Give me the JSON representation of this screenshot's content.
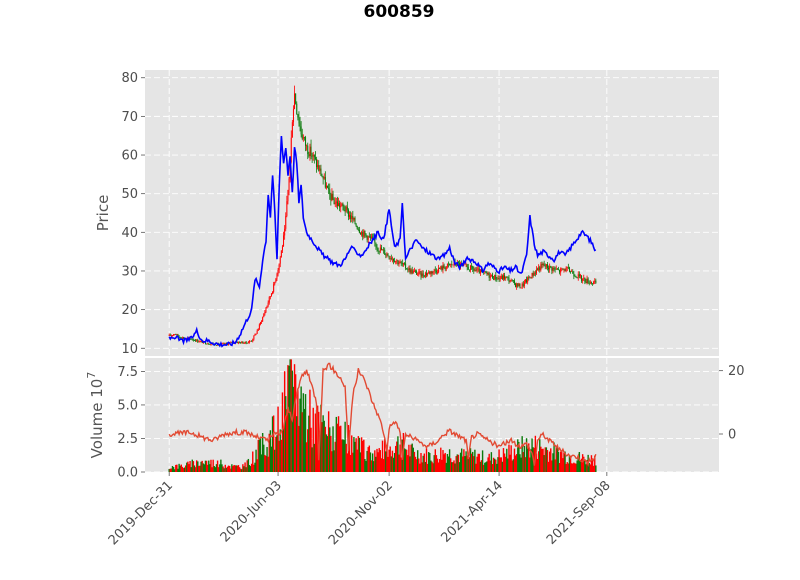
{
  "chart_data": {
    "type": "candlestick",
    "title": "600859",
    "price_panel": {
      "ylabel": "Price",
      "ylim": [
        8,
        82
      ],
      "yticks": [
        10,
        20,
        30,
        40,
        50,
        60,
        70,
        80
      ],
      "ohlc_approx": [
        {
          "x": 0,
          "close": 13.2
        },
        {
          "x": 5,
          "close": 13.8
        },
        {
          "x": 10,
          "close": 12.8
        },
        {
          "x": 15,
          "close": 12.6
        },
        {
          "x": 20,
          "close": 12.4
        },
        {
          "x": 25,
          "close": 12.0
        },
        {
          "x": 30,
          "close": 11.6
        },
        {
          "x": 35,
          "close": 11.3
        },
        {
          "x": 40,
          "close": 11.1
        },
        {
          "x": 45,
          "close": 11.0
        },
        {
          "x": 50,
          "close": 11.0
        },
        {
          "x": 55,
          "close": 11.3
        },
        {
          "x": 60,
          "close": 11.6
        },
        {
          "x": 65,
          "close": 11.5
        },
        {
          "x": 70,
          "close": 11.4
        },
        {
          "x": 75,
          "close": 12.0
        },
        {
          "x": 80,
          "close": 14.5
        },
        {
          "x": 85,
          "close": 18.0
        },
        {
          "x": 90,
          "close": 22.0
        },
        {
          "x": 95,
          "close": 26.0
        },
        {
          "x": 100,
          "close": 32.0
        },
        {
          "x": 105,
          "close": 40.0
        },
        {
          "x": 110,
          "close": 58.0
        },
        {
          "x": 112,
          "close": 70.0
        },
        {
          "x": 114,
          "close": 76.0
        },
        {
          "x": 116,
          "close": 72.0
        },
        {
          "x": 120,
          "close": 66.0
        },
        {
          "x": 125,
          "close": 62.0
        },
        {
          "x": 130,
          "close": 60.0
        },
        {
          "x": 135,
          "close": 57.0
        },
        {
          "x": 140,
          "close": 54.0
        },
        {
          "x": 145,
          "close": 50.0
        },
        {
          "x": 150,
          "close": 48.0
        },
        {
          "x": 155,
          "close": 47.0
        },
        {
          "x": 160,
          "close": 46.0
        },
        {
          "x": 165,
          "close": 44.0
        },
        {
          "x": 170,
          "close": 42.0
        },
        {
          "x": 175,
          "close": 40.0
        },
        {
          "x": 180,
          "close": 39.0
        },
        {
          "x": 185,
          "close": 38.0
        },
        {
          "x": 190,
          "close": 36.0
        },
        {
          "x": 195,
          "close": 35.0
        },
        {
          "x": 200,
          "close": 34.0
        },
        {
          "x": 205,
          "close": 33.0
        },
        {
          "x": 210,
          "close": 32.0
        },
        {
          "x": 215,
          "close": 31.0
        },
        {
          "x": 220,
          "close": 30.0
        },
        {
          "x": 225,
          "close": 29.5
        },
        {
          "x": 230,
          "close": 29.0
        },
        {
          "x": 235,
          "close": 29.5
        },
        {
          "x": 240,
          "close": 30.0
        },
        {
          "x": 245,
          "close": 30.5
        },
        {
          "x": 250,
          "close": 31.0
        },
        {
          "x": 255,
          "close": 31.5
        },
        {
          "x": 260,
          "close": 32.0
        },
        {
          "x": 265,
          "close": 31.5
        },
        {
          "x": 270,
          "close": 31.0
        },
        {
          "x": 275,
          "close": 30.5
        },
        {
          "x": 280,
          "close": 30.0
        },
        {
          "x": 285,
          "close": 29.5
        },
        {
          "x": 290,
          "close": 29.0
        },
        {
          "x": 295,
          "close": 28.5
        },
        {
          "x": 300,
          "close": 28.0
        },
        {
          "x": 305,
          "close": 28.5
        },
        {
          "x": 310,
          "close": 27.5
        },
        {
          "x": 315,
          "close": 26.5
        },
        {
          "x": 320,
          "close": 26.0
        },
        {
          "x": 325,
          "close": 27.5
        },
        {
          "x": 330,
          "close": 29.0
        },
        {
          "x": 335,
          "close": 30.5
        },
        {
          "x": 340,
          "close": 31.5
        },
        {
          "x": 345,
          "close": 31.0
        },
        {
          "x": 350,
          "close": 30.5
        },
        {
          "x": 355,
          "close": 30.0
        },
        {
          "x": 360,
          "close": 30.5
        },
        {
          "x": 365,
          "close": 30.0
        },
        {
          "x": 370,
          "close": 29.0
        },
        {
          "x": 375,
          "close": 28.0
        },
        {
          "x": 380,
          "close": 27.5
        },
        {
          "x": 385,
          "close": 27.0
        },
        {
          "x": 388,
          "close": 26.8
        }
      ],
      "overlay_line": {
        "color": "#0000ff",
        "points": [
          [
            0,
            12.5
          ],
          [
            5,
            13.0
          ],
          [
            10,
            12.0
          ],
          [
            15,
            12.0
          ],
          [
            20,
            12.5
          ],
          [
            25,
            14.5
          ],
          [
            30,
            12.0
          ],
          [
            35,
            12.0
          ],
          [
            40,
            11.5
          ],
          [
            45,
            11.0
          ],
          [
            50,
            11.0
          ],
          [
            55,
            11.0
          ],
          [
            60,
            11.5
          ],
          [
            65,
            14.0
          ],
          [
            70,
            17.0
          ],
          [
            75,
            20.0
          ],
          [
            78,
            28.0
          ],
          [
            82,
            26.0
          ],
          [
            85,
            33.0
          ],
          [
            88,
            38.0
          ],
          [
            90,
            50.0
          ],
          [
            92,
            44.0
          ],
          [
            94,
            55.0
          ],
          [
            96,
            45.0
          ],
          [
            98,
            33.0
          ],
          [
            100,
            52.0
          ],
          [
            102,
            65.0
          ],
          [
            104,
            58.0
          ],
          [
            106,
            62.0
          ],
          [
            108,
            55.0
          ],
          [
            110,
            60.0
          ],
          [
            112,
            50.0
          ],
          [
            114,
            62.0
          ],
          [
            116,
            58.0
          ],
          [
            118,
            48.0
          ],
          [
            120,
            52.0
          ],
          [
            122,
            44.0
          ],
          [
            125,
            40.0
          ],
          [
            130,
            38.0
          ],
          [
            135,
            36.0
          ],
          [
            140,
            34.0
          ],
          [
            145,
            33.0
          ],
          [
            150,
            32.0
          ],
          [
            155,
            31.5
          ],
          [
            160,
            33.0
          ],
          [
            165,
            36.0
          ],
          [
            170,
            35.0
          ],
          [
            175,
            34.0
          ],
          [
            180,
            36.0
          ],
          [
            185,
            38.0
          ],
          [
            190,
            40.0
          ],
          [
            195,
            38.0
          ],
          [
            200,
            46.0
          ],
          [
            205,
            36.0
          ],
          [
            210,
            38.0
          ],
          [
            212,
            48.0
          ],
          [
            215,
            33.0
          ],
          [
            220,
            36.0
          ],
          [
            225,
            38.0
          ],
          [
            230,
            36.0
          ],
          [
            235,
            35.0
          ],
          [
            240,
            34.0
          ],
          [
            245,
            33.0
          ],
          [
            250,
            34.0
          ],
          [
            255,
            36.0
          ],
          [
            260,
            32.0
          ],
          [
            265,
            31.0
          ],
          [
            270,
            33.0
          ],
          [
            275,
            33.0
          ],
          [
            280,
            32.0
          ],
          [
            285,
            30.0
          ],
          [
            290,
            32.0
          ],
          [
            295,
            31.0
          ],
          [
            300,
            30.0
          ],
          [
            305,
            31.0
          ],
          [
            310,
            30.0
          ],
          [
            315,
            31.0
          ],
          [
            320,
            29.0
          ],
          [
            325,
            34.0
          ],
          [
            328,
            44.0
          ],
          [
            332,
            37.0
          ],
          [
            335,
            34.0
          ],
          [
            340,
            35.0
          ],
          [
            345,
            34.0
          ],
          [
            350,
            33.0
          ],
          [
            355,
            35.0
          ],
          [
            360,
            34.0
          ],
          [
            365,
            36.0
          ],
          [
            370,
            38.0
          ],
          [
            375,
            40.0
          ],
          [
            380,
            39.0
          ],
          [
            385,
            37.0
          ],
          [
            388,
            35.0
          ]
        ]
      }
    },
    "volume_panel": {
      "ylabel": "Volume  10",
      "ylabel_exponent": "7",
      "ylim": [
        0,
        8.5
      ],
      "yticks": [
        "0.0",
        "2.5",
        "5.0",
        "7.5"
      ],
      "right_axis_ticks": [
        "0",
        "20"
      ],
      "right_ylim": [
        -12,
        24
      ],
      "bar_colors": {
        "up": "#0b7a0b",
        "down": "#ff0000"
      },
      "volume_profile": [
        [
          0,
          0.4
        ],
        [
          10,
          0.45
        ],
        [
          20,
          0.6
        ],
        [
          30,
          0.8
        ],
        [
          40,
          0.7
        ],
        [
          50,
          0.6
        ],
        [
          60,
          0.4
        ],
        [
          70,
          0.5
        ],
        [
          80,
          1.5
        ],
        [
          90,
          2.5
        ],
        [
          100,
          3.5
        ],
        [
          106,
          5.5
        ],
        [
          110,
          7.0
        ],
        [
          114,
          6.5
        ],
        [
          120,
          5.5
        ],
        [
          130,
          4.0
        ],
        [
          140,
          3.5
        ],
        [
          150,
          3.0
        ],
        [
          160,
          2.5
        ],
        [
          170,
          2.0
        ],
        [
          180,
          1.5
        ],
        [
          190,
          1.5
        ],
        [
          200,
          1.8
        ],
        [
          210,
          2.2
        ],
        [
          220,
          1.5
        ],
        [
          230,
          1.3
        ],
        [
          240,
          1.2
        ],
        [
          250,
          1.5
        ],
        [
          260,
          1.3
        ],
        [
          270,
          1.2
        ],
        [
          280,
          1.2
        ],
        [
          290,
          1.0
        ],
        [
          300,
          1.2
        ],
        [
          310,
          1.5
        ],
        [
          320,
          1.8
        ],
        [
          330,
          2.0
        ],
        [
          340,
          1.8
        ],
        [
          350,
          1.5
        ],
        [
          360,
          1.3
        ],
        [
          370,
          1.1
        ],
        [
          380,
          1.0
        ],
        [
          388,
          1.0
        ]
      ],
      "secondary_line": {
        "color": "#e24a33",
        "points": [
          [
            0,
            0.0
          ],
          [
            20,
            0.5
          ],
          [
            30,
            -1.0
          ],
          [
            40,
            -2.0
          ],
          [
            50,
            0.0
          ],
          [
            60,
            0.5
          ],
          [
            70,
            0.5
          ],
          [
            80,
            -1.0
          ],
          [
            90,
            -2.0
          ],
          [
            95,
            0.0
          ],
          [
            100,
            0.0
          ],
          [
            104,
            2.0
          ],
          [
            108,
            8.0
          ],
          [
            112,
            5.0
          ],
          [
            116,
            12.0
          ],
          [
            120,
            18.0
          ],
          [
            125,
            20.0
          ],
          [
            130,
            15.0
          ],
          [
            134,
            10.0
          ],
          [
            136,
            -8.0
          ],
          [
            140,
            20.0
          ],
          [
            145,
            22.0
          ],
          [
            150,
            20.0
          ],
          [
            155,
            18.0
          ],
          [
            160,
            15.0
          ],
          [
            163,
            -5.0
          ],
          [
            167,
            12.0
          ],
          [
            172,
            20.0
          ],
          [
            176,
            18.0
          ],
          [
            180,
            15.0
          ],
          [
            185,
            10.0
          ],
          [
            190,
            6.0
          ],
          [
            194,
            2.0
          ],
          [
            198,
            -5.0
          ],
          [
            200,
            2.0
          ],
          [
            205,
            4.0
          ],
          [
            210,
            1.0
          ],
          [
            212,
            -8.0
          ],
          [
            215,
            0.0
          ],
          [
            220,
            -1.0
          ],
          [
            225,
            -2.0
          ],
          [
            230,
            -3.0
          ],
          [
            235,
            -4.0
          ],
          [
            240,
            -3.0
          ],
          [
            245,
            -2.0
          ],
          [
            250,
            0.0
          ],
          [
            255,
            1.0
          ],
          [
            260,
            0.0
          ],
          [
            265,
            -1.0
          ],
          [
            270,
            -2.0
          ],
          [
            272,
            -8.0
          ],
          [
            275,
            -1.0
          ],
          [
            280,
            0.0
          ],
          [
            285,
            -1.0
          ],
          [
            290,
            -2.0
          ],
          [
            295,
            -3.0
          ],
          [
            300,
            -4.0
          ],
          [
            305,
            -3.0
          ],
          [
            310,
            -2.0
          ],
          [
            315,
            -3.0
          ],
          [
            320,
            -4.0
          ],
          [
            325,
            -3.0
          ],
          [
            330,
            -6.0
          ],
          [
            332,
            -10.0
          ],
          [
            335,
            -2.0
          ],
          [
            340,
            0.0
          ],
          [
            345,
            -2.0
          ],
          [
            350,
            -3.0
          ],
          [
            355,
            -5.0
          ],
          [
            360,
            -6.0
          ],
          [
            365,
            -7.0
          ],
          [
            370,
            -7.0
          ],
          [
            375,
            -8.0
          ],
          [
            380,
            -9.0
          ],
          [
            385,
            -8.0
          ],
          [
            388,
            -7.0
          ]
        ]
      }
    },
    "x_axis": {
      "ticks": [
        {
          "x": 0,
          "label": "2019-Dec-31"
        },
        {
          "x": 99,
          "label": "2020-Jun-03"
        },
        {
          "x": 200,
          "label": "2020-Nov-02"
        },
        {
          "x": 300,
          "label": "2021-Apr-14"
        },
        {
          "x": 398,
          "label": "2021-Sep-08"
        }
      ],
      "xlim": [
        -22,
        500
      ],
      "n_bars": 470
    },
    "grid": true,
    "style": "ggplot"
  }
}
